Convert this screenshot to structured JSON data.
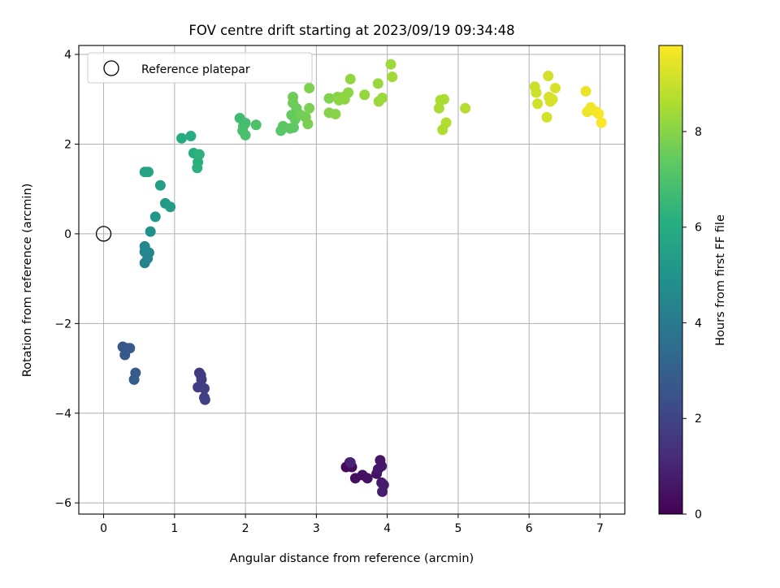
{
  "chart_data": {
    "type": "scatter",
    "title": "FOV centre drift starting at 2023/09/19 09:34:48",
    "xlabel": "Angular distance from reference (arcmin)",
    "ylabel": "Rotation from reference (arcmin)",
    "colorbar_label": "Hours from first FF file",
    "xlim": [
      -0.35,
      7.35
    ],
    "ylim": [
      -6.25,
      4.2
    ],
    "xticks": [
      0,
      1,
      2,
      3,
      4,
      5,
      6,
      7
    ],
    "yticks": [
      -6,
      -4,
      -2,
      0,
      2,
      4
    ],
    "xtick_labels": [
      "0",
      "1",
      "2",
      "3",
      "4",
      "5",
      "6",
      "7"
    ],
    "ytick_labels": [
      "−6",
      "−4",
      "−2",
      "0",
      "2",
      "4"
    ],
    "colorbar_range": [
      0,
      9.8
    ],
    "colorbar_ticks": [
      0,
      2,
      4,
      6,
      8
    ],
    "colorbar_tick_labels": [
      "0",
      "2",
      "4",
      "6",
      "8"
    ],
    "colormap": "viridis",
    "grid": true,
    "legend": {
      "label": "Reference platepar",
      "placement": "top-left"
    },
    "reference_point": {
      "x": 0,
      "y": 0
    },
    "points": [
      {
        "x": 3.47,
        "y": -5.1,
        "t": 0.2
      },
      {
        "x": 3.42,
        "y": -5.2,
        "t": 0.25
      },
      {
        "x": 3.5,
        "y": -5.2,
        "t": 0.3
      },
      {
        "x": 3.55,
        "y": -5.45,
        "t": 0.35
      },
      {
        "x": 3.65,
        "y": -5.38,
        "t": 0.4
      },
      {
        "x": 3.72,
        "y": -5.45,
        "t": 0.45
      },
      {
        "x": 3.85,
        "y": -5.35,
        "t": 0.5
      },
      {
        "x": 3.9,
        "y": -5.05,
        "t": 0.55
      },
      {
        "x": 3.92,
        "y": -5.18,
        "t": 0.6
      },
      {
        "x": 3.87,
        "y": -5.25,
        "t": 0.65
      },
      {
        "x": 3.92,
        "y": -5.55,
        "t": 0.7
      },
      {
        "x": 3.95,
        "y": -5.6,
        "t": 0.75
      },
      {
        "x": 3.93,
        "y": -5.75,
        "t": 0.8
      },
      {
        "x": 3.48,
        "y": -5.1,
        "t": 1.0
      },
      {
        "x": 1.35,
        "y": -3.1,
        "t": 1.6
      },
      {
        "x": 1.37,
        "y": -3.15,
        "t": 1.65
      },
      {
        "x": 1.38,
        "y": -3.25,
        "t": 1.7
      },
      {
        "x": 1.33,
        "y": -3.42,
        "t": 1.75
      },
      {
        "x": 1.42,
        "y": -3.45,
        "t": 1.8
      },
      {
        "x": 1.42,
        "y": -3.65,
        "t": 1.85
      },
      {
        "x": 1.43,
        "y": -3.7,
        "t": 1.9
      },
      {
        "x": 0.27,
        "y": -2.52,
        "t": 2.6
      },
      {
        "x": 0.32,
        "y": -2.55,
        "t": 2.65
      },
      {
        "x": 0.37,
        "y": -2.55,
        "t": 2.7
      },
      {
        "x": 0.3,
        "y": -2.7,
        "t": 2.75
      },
      {
        "x": 0.45,
        "y": -3.1,
        "t": 2.8
      },
      {
        "x": 0.43,
        "y": -3.25,
        "t": 2.85
      },
      {
        "x": 0.58,
        "y": -0.65,
        "t": 4.3
      },
      {
        "x": 0.62,
        "y": -0.55,
        "t": 4.4
      },
      {
        "x": 0.58,
        "y": -0.4,
        "t": 4.45
      },
      {
        "x": 0.64,
        "y": -0.42,
        "t": 4.5
      },
      {
        "x": 0.58,
        "y": -0.28,
        "t": 4.55
      },
      {
        "x": 0.66,
        "y": 0.05,
        "t": 4.9
      },
      {
        "x": 0.73,
        "y": 0.38,
        "t": 5.1
      },
      {
        "x": 0.87,
        "y": 0.68,
        "t": 5.3
      },
      {
        "x": 0.94,
        "y": 0.6,
        "t": 5.35
      },
      {
        "x": 0.8,
        "y": 1.08,
        "t": 5.5
      },
      {
        "x": 0.58,
        "y": 1.38,
        "t": 5.7
      },
      {
        "x": 0.63,
        "y": 1.38,
        "t": 5.75
      },
      {
        "x": 1.1,
        "y": 2.13,
        "t": 6.0
      },
      {
        "x": 1.23,
        "y": 2.18,
        "t": 6.05
      },
      {
        "x": 1.27,
        "y": 1.8,
        "t": 6.1
      },
      {
        "x": 1.33,
        "y": 1.6,
        "t": 6.15
      },
      {
        "x": 1.32,
        "y": 1.47,
        "t": 6.2
      },
      {
        "x": 1.35,
        "y": 1.77,
        "t": 6.25
      },
      {
        "x": 1.92,
        "y": 2.58,
        "t": 6.7
      },
      {
        "x": 1.97,
        "y": 2.4,
        "t": 6.75
      },
      {
        "x": 2.0,
        "y": 2.47,
        "t": 6.8
      },
      {
        "x": 1.96,
        "y": 2.3,
        "t": 6.85
      },
      {
        "x": 2.0,
        "y": 2.2,
        "t": 6.9
      },
      {
        "x": 2.15,
        "y": 2.43,
        "t": 7.0
      },
      {
        "x": 2.5,
        "y": 2.3,
        "t": 7.2
      },
      {
        "x": 2.53,
        "y": 2.4,
        "t": 7.25
      },
      {
        "x": 2.63,
        "y": 2.35,
        "t": 7.3
      },
      {
        "x": 2.68,
        "y": 2.37,
        "t": 7.35
      },
      {
        "x": 2.7,
        "y": 2.55,
        "t": 7.4
      },
      {
        "x": 2.65,
        "y": 2.65,
        "t": 7.45
      },
      {
        "x": 2.72,
        "y": 2.8,
        "t": 7.5
      },
      {
        "x": 2.67,
        "y": 2.92,
        "t": 7.55
      },
      {
        "x": 2.67,
        "y": 3.05,
        "t": 7.6
      },
      {
        "x": 2.78,
        "y": 2.65,
        "t": 7.65
      },
      {
        "x": 2.85,
        "y": 2.6,
        "t": 7.7
      },
      {
        "x": 2.88,
        "y": 2.45,
        "t": 7.75
      },
      {
        "x": 2.9,
        "y": 2.8,
        "t": 7.8
      },
      {
        "x": 2.9,
        "y": 3.25,
        "t": 7.85
      },
      {
        "x": 3.18,
        "y": 3.02,
        "t": 7.9
      },
      {
        "x": 3.18,
        "y": 2.7,
        "t": 7.95
      },
      {
        "x": 3.27,
        "y": 2.67,
        "t": 8.0
      },
      {
        "x": 3.3,
        "y": 3.05,
        "t": 8.0
      },
      {
        "x": 3.32,
        "y": 2.98,
        "t": 8.05
      },
      {
        "x": 3.38,
        "y": 3.05,
        "t": 8.05
      },
      {
        "x": 3.4,
        "y": 3.0,
        "t": 8.1
      },
      {
        "x": 3.45,
        "y": 3.15,
        "t": 8.1
      },
      {
        "x": 3.48,
        "y": 3.45,
        "t": 8.15
      },
      {
        "x": 3.68,
        "y": 3.1,
        "t": 8.2
      },
      {
        "x": 3.87,
        "y": 3.35,
        "t": 8.25
      },
      {
        "x": 3.88,
        "y": 2.95,
        "t": 8.3
      },
      {
        "x": 3.93,
        "y": 3.03,
        "t": 8.3
      },
      {
        "x": 4.05,
        "y": 3.78,
        "t": 8.35
      },
      {
        "x": 4.07,
        "y": 3.5,
        "t": 8.4
      },
      {
        "x": 4.73,
        "y": 2.8,
        "t": 8.5
      },
      {
        "x": 4.75,
        "y": 2.98,
        "t": 8.55
      },
      {
        "x": 4.8,
        "y": 3.0,
        "t": 8.55
      },
      {
        "x": 4.78,
        "y": 2.32,
        "t": 8.6
      },
      {
        "x": 4.83,
        "y": 2.48,
        "t": 8.65
      },
      {
        "x": 5.1,
        "y": 2.8,
        "t": 8.7
      },
      {
        "x": 6.08,
        "y": 3.28,
        "t": 9.0
      },
      {
        "x": 6.1,
        "y": 3.15,
        "t": 9.05
      },
      {
        "x": 6.12,
        "y": 2.9,
        "t": 9.1
      },
      {
        "x": 6.25,
        "y": 2.6,
        "t": 9.15
      },
      {
        "x": 6.27,
        "y": 3.52,
        "t": 9.15
      },
      {
        "x": 6.28,
        "y": 3.05,
        "t": 9.2
      },
      {
        "x": 6.3,
        "y": 2.95,
        "t": 9.2
      },
      {
        "x": 6.33,
        "y": 3.0,
        "t": 9.25
      },
      {
        "x": 6.37,
        "y": 3.25,
        "t": 9.25
      },
      {
        "x": 6.8,
        "y": 3.18,
        "t": 9.5
      },
      {
        "x": 6.82,
        "y": 2.72,
        "t": 9.55
      },
      {
        "x": 6.87,
        "y": 2.82,
        "t": 9.6
      },
      {
        "x": 6.95,
        "y": 2.72,
        "t": 9.65
      },
      {
        "x": 6.98,
        "y": 2.68,
        "t": 9.7
      },
      {
        "x": 7.02,
        "y": 2.48,
        "t": 9.75
      }
    ]
  }
}
